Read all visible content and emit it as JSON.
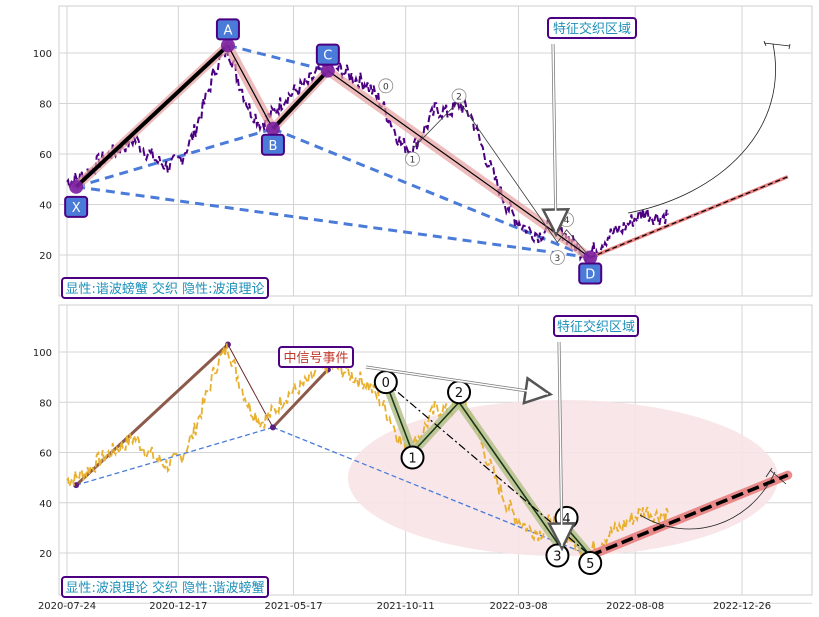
{
  "chart_data": [
    {
      "type": "line",
      "panel": "top",
      "ylim": [
        3,
        117
      ],
      "yticks": [
        20,
        40,
        60,
        80,
        100
      ],
      "xticks": [],
      "colors": {
        "price": "#4B0082",
        "pattern": "#4A7BD8",
        "leg": "#000000",
        "leg_fill": "#E8A0A0",
        "label_box": "#4A7BD8",
        "label_border": "#4B0082"
      },
      "price_series": [
        [
          "2020-07-24",
          49
        ],
        [
          "2020-08-05",
          50
        ],
        [
          "2020-08-20",
          53
        ],
        [
          "2020-09-05",
          57
        ],
        [
          "2020-09-20",
          60
        ],
        [
          "2020-10-05",
          63
        ],
        [
          "2020-10-20",
          66
        ],
        [
          "2020-11-05",
          61
        ],
        [
          "2020-11-20",
          57
        ],
        [
          "2020-12-05",
          55
        ],
        [
          "2020-12-20",
          58
        ],
        [
          "2021-01-05",
          67
        ],
        [
          "2021-01-20",
          80
        ],
        [
          "2021-02-05",
          95
        ],
        [
          "2021-02-20",
          102
        ],
        [
          "2021-03-05",
          90
        ],
        [
          "2021-03-20",
          78
        ],
        [
          "2021-04-05",
          72
        ],
        [
          "2021-04-20",
          76
        ],
        [
          "2021-05-05",
          82
        ],
        [
          "2021-05-20",
          85
        ],
        [
          "2021-06-05",
          88
        ],
        [
          "2021-06-20",
          93
        ],
        [
          "2021-07-05",
          95
        ],
        [
          "2021-07-20",
          93
        ],
        [
          "2021-08-05",
          90
        ],
        [
          "2021-08-20",
          88
        ],
        [
          "2021-09-05",
          82
        ],
        [
          "2021-09-20",
          74
        ],
        [
          "2021-10-05",
          64
        ],
        [
          "2021-10-20",
          62
        ],
        [
          "2021-11-05",
          70
        ],
        [
          "2021-11-20",
          78
        ],
        [
          "2021-12-05",
          76
        ],
        [
          "2021-12-20",
          80
        ],
        [
          "2022-01-05",
          75
        ],
        [
          "2022-01-20",
          62
        ],
        [
          "2022-02-05",
          50
        ],
        [
          "2022-02-20",
          40
        ],
        [
          "2022-03-05",
          34
        ],
        [
          "2022-03-20",
          30
        ],
        [
          "2022-04-05",
          28
        ],
        [
          "2022-04-20",
          33
        ],
        [
          "2022-05-05",
          29
        ],
        [
          "2022-05-20",
          24
        ],
        [
          "2022-06-05",
          20
        ],
        [
          "2022-06-20",
          23
        ],
        [
          "2022-07-05",
          28
        ],
        [
          "2022-07-20",
          30
        ],
        [
          "2022-08-05",
          34
        ],
        [
          "2022-08-20",
          37
        ],
        [
          "2022-09-05",
          35
        ],
        [
          "2022-09-20",
          36
        ]
      ],
      "pivots": [
        {
          "label": "X",
          "date": "2020-08-05",
          "value": 47
        },
        {
          "label": "A",
          "date": "2021-02-20",
          "value": 103
        },
        {
          "label": "B",
          "date": "2021-04-20",
          "value": 70
        },
        {
          "label": "C",
          "date": "2021-07-01",
          "value": 93
        },
        {
          "label": "D",
          "date": "2022-06-10",
          "value": 19
        }
      ],
      "wave_labels": [
        {
          "label": "0",
          "date": "2021-09-15",
          "value": 87
        },
        {
          "label": "1",
          "date": "2021-10-20",
          "value": 58
        },
        {
          "label": "2",
          "date": "2021-12-20",
          "value": 83
        },
        {
          "label": "3",
          "date": "2022-04-28",
          "value": 19
        },
        {
          "label": "4",
          "date": "2022-05-10",
          "value": 34
        }
      ],
      "wave_path": [
        [
          "2021-10-20",
          62
        ],
        [
          "2021-12-20",
          81
        ],
        [
          "2022-04-28",
          25
        ],
        [
          "2022-05-10",
          30
        ],
        [
          "2022-06-10",
          19
        ]
      ],
      "forecast_line": [
        [
          "2022-06-10",
          19
        ],
        [
          "2023-02-24",
          51
        ]
      ],
      "annotation": {
        "text": "特征交织区域",
        "date": "2022-06-05",
        "value": 109
      },
      "caption": "显性:谐波螃蟹 交织 隐性:波浪理论"
    },
    {
      "type": "line",
      "panel": "bottom",
      "ylim": [
        3,
        117
      ],
      "yticks": [
        20,
        40,
        60,
        80,
        100
      ],
      "xticks": [
        "2020-07-24",
        "2020-12-17",
        "2021-05-17",
        "2021-10-11",
        "2022-03-08",
        "2022-08-08",
        "2022-12-26"
      ],
      "colors": {
        "price": "#E8B030",
        "wave_fill": "#B5C08A",
        "wave_line": "#1A3A1A",
        "pattern_leg": "#8B5A4A",
        "pattern_dash": "#4A7BD8",
        "forecast": "#000000",
        "forecast_fill": "#E88080",
        "ellipse": "#F7E3E6",
        "signal": "#C0392B"
      },
      "waves": [
        {
          "label": "0",
          "date": "2021-09-15",
          "value": 88
        },
        {
          "label": "1",
          "date": "2021-10-20",
          "value": 58
        },
        {
          "label": "2",
          "date": "2021-12-20",
          "value": 84
        },
        {
          "label": "3",
          "date": "2022-04-28",
          "value": 19
        },
        {
          "label": "4",
          "date": "2022-05-10",
          "value": 34
        },
        {
          "label": "5",
          "date": "2022-06-10",
          "value": 16
        }
      ],
      "forecast_line": [
        [
          "2022-06-10",
          19
        ],
        [
          "2023-02-24",
          51
        ]
      ],
      "signal_label": "中信号事件",
      "annotation": {
        "text": "特征交织区域",
        "date": "2022-06-05",
        "value": 109
      },
      "caption": "显性:波浪理论 交织 隐性:谐波螃蟹"
    }
  ]
}
